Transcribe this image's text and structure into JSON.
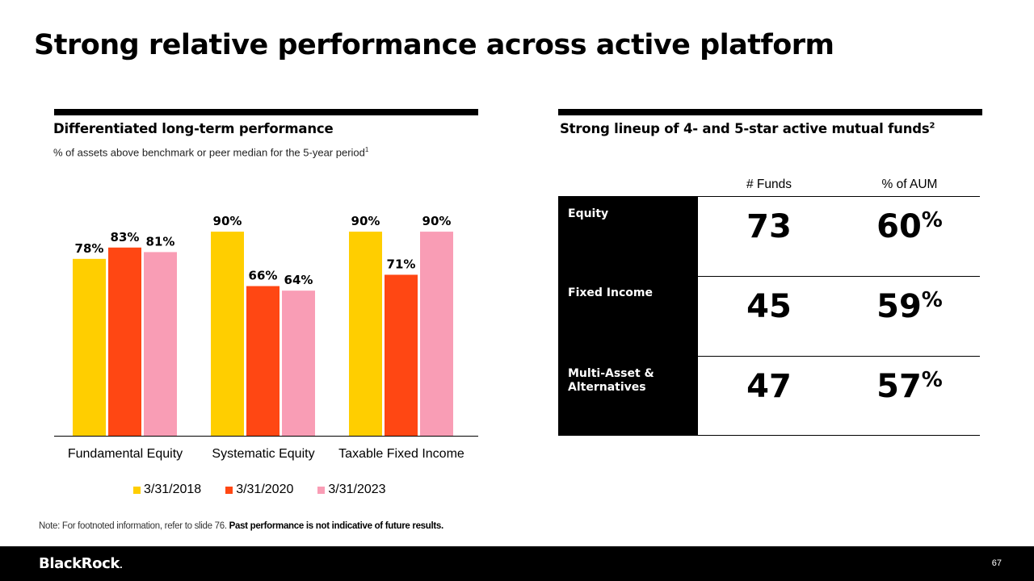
{
  "page": {
    "title": "Strong relative performance across active platform",
    "note_text": "Note: For footnoted information, refer to slide 76. ",
    "note_bold": "Past performance is not indicative of future results."
  },
  "left_panel": {
    "heading": "Differentiated long-term performance",
    "subtitle": "% of assets above benchmark or peer median for the 5-year period",
    "subtitle_footnote": "1"
  },
  "chart_data": {
    "type": "bar",
    "title": "Differentiated long-term performance",
    "ylabel": "% of assets above benchmark or peer median for the 5-year period",
    "xlabel": "",
    "categories": [
      "Fundamental Equity",
      "Systematic Equity",
      "Taxable Fixed Income"
    ],
    "series": [
      {
        "name": "3/31/2018",
        "values": [
          78,
          90,
          90
        ],
        "labels": [
          "78%",
          "90%",
          "90%"
        ],
        "color": "#FFCE00"
      },
      {
        "name": "3/31/2020",
        "values": [
          83,
          66,
          71
        ],
        "labels": [
          "83%",
          "66%",
          "71%"
        ],
        "color": "#FF4713"
      },
      {
        "name": "3/31/2023",
        "values": [
          81,
          64,
          90
        ],
        "labels": [
          "81%",
          "64%",
          "90%"
        ],
        "color": "#F99DB5"
      }
    ],
    "ylim": [
      0,
      100
    ],
    "grid": false,
    "legend_position": "bottom"
  },
  "right_panel": {
    "heading": "Strong lineup of 4- and 5-star active mutual funds",
    "heading_footnote": "2",
    "columns": [
      "# Funds",
      "% of AUM"
    ],
    "rows": [
      {
        "label": "Equity",
        "funds": "73",
        "aum": "60",
        "aum_unit": "%"
      },
      {
        "label": "Fixed Income",
        "funds": "45",
        "aum": "59",
        "aum_unit": "%"
      },
      {
        "label": "Multi-Asset & Alternatives",
        "funds": "47",
        "aum": "57",
        "aum_unit": "%"
      }
    ]
  },
  "footer": {
    "logo": "BlackRock",
    "logo_mark": ".",
    "page_number": "67"
  },
  "colors": {
    "yellow": "#FFCE00",
    "orange": "#FF4713",
    "pink": "#F99DB5",
    "black": "#000000"
  }
}
